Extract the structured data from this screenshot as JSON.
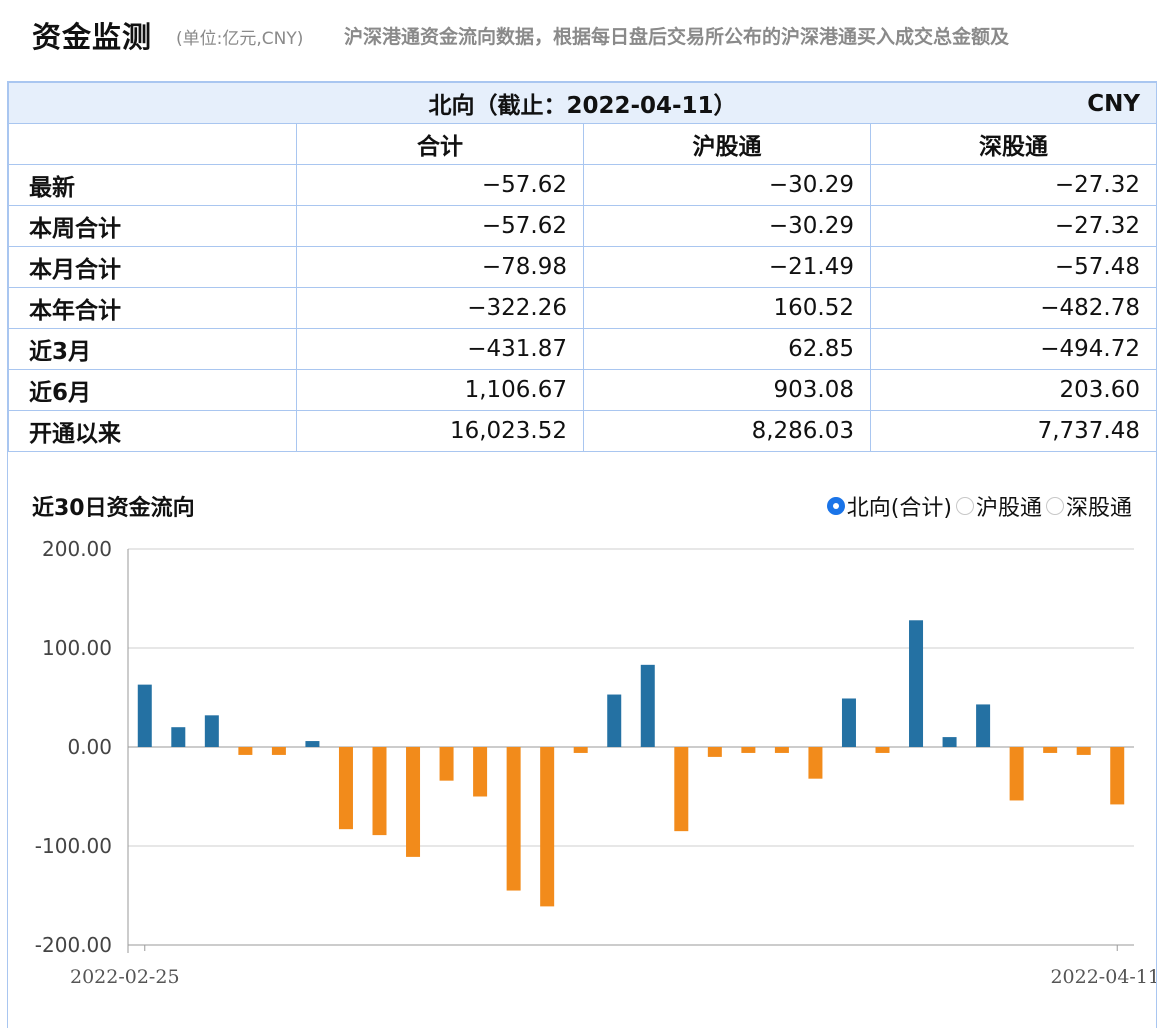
{
  "header": {
    "title": "资金监测",
    "unit": "(单位:亿元,CNY)",
    "description": "沪深港通资金流向数据，根据每日盘后交易所公布的沪深港通买入成交总金额及"
  },
  "table": {
    "title": "北向（截止：2022-04-11）",
    "currency": "CNY",
    "columns": [
      "合计",
      "沪股通",
      "深股通"
    ],
    "rows": [
      {
        "label": "最新",
        "values": [
          "−57.62",
          "−30.29",
          "−27.32"
        ]
      },
      {
        "label": "本周合计",
        "values": [
          "−57.62",
          "−30.29",
          "−27.32"
        ]
      },
      {
        "label": "本月合计",
        "values": [
          "−78.98",
          "−21.49",
          "−57.48"
        ]
      },
      {
        "label": "本年合计",
        "values": [
          "−322.26",
          "160.52",
          "−482.78"
        ]
      },
      {
        "label": "近3月",
        "values": [
          "−431.87",
          "62.85",
          "−494.72"
        ]
      },
      {
        "label": "近6月",
        "values": [
          "1,106.67",
          "903.08",
          "203.60"
        ]
      },
      {
        "label": "开通以来",
        "values": [
          "16,023.52",
          "8,286.03",
          "7,737.48"
        ]
      }
    ]
  },
  "chart_section": {
    "title": "近30日资金流向",
    "options": [
      {
        "label": "北向(合计)",
        "selected": true
      },
      {
        "label": "沪股通",
        "selected": false
      },
      {
        "label": "深股通",
        "selected": false
      }
    ]
  },
  "chart_data": {
    "type": "bar",
    "title": "近30日资金流向",
    "x_start_label": "2022-02-25",
    "x_end_label": "2022-04-11",
    "y_ticks": [
      "200.00",
      "100.00",
      "0.00",
      "-100.00",
      "-200.00"
    ],
    "ylim": [
      -200,
      200
    ],
    "grid": true,
    "positive_color": "#2471a3",
    "negative_color": "#f28b1b",
    "values": [
      63,
      20,
      32,
      -8,
      -8,
      6,
      -83,
      -89,
      -111,
      -34,
      -50,
      -145,
      -161,
      -6,
      53,
      83,
      -85,
      -10,
      -6,
      -6,
      -32,
      49,
      -6,
      128,
      10,
      43,
      -54,
      -6,
      -8,
      -58
    ]
  }
}
